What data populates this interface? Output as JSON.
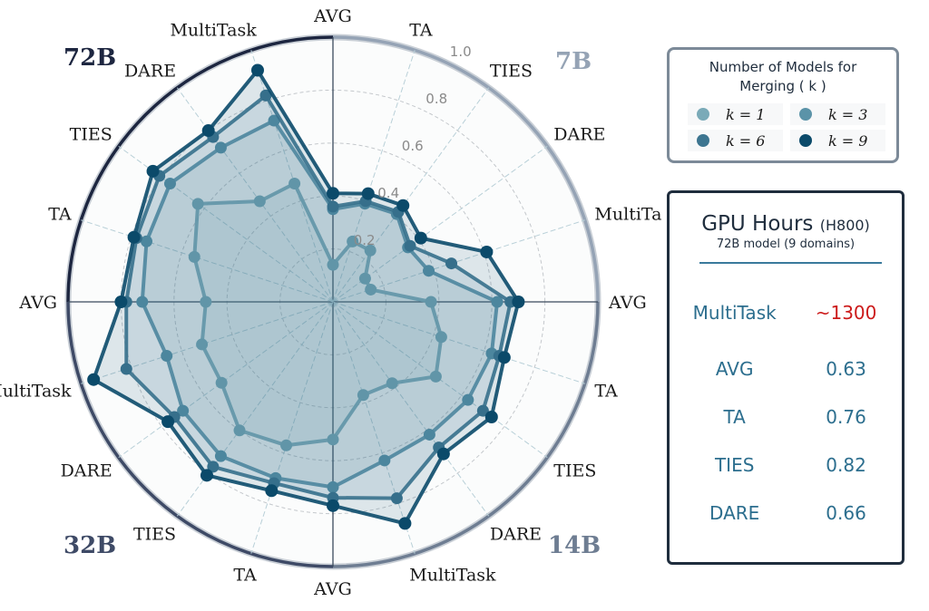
{
  "chart_data": {
    "type": "radar",
    "axes": [
      "AVG",
      "TA",
      "TIES",
      "DARE",
      "MultiTask",
      "AVG",
      "TA",
      "TIES",
      "DARE",
      "MultiTask",
      "AVG",
      "TA",
      "TIES",
      "DARE",
      "MultiTask",
      "AVG",
      "TA",
      "TIES",
      "DARE",
      "MultiTask"
    ],
    "models": [
      "7B",
      "14B",
      "32B",
      "72B"
    ],
    "rlim": [
      0,
      1.0
    ],
    "rticks": [
      "0.2",
      "0.4",
      "0.6",
      "0.8",
      "1.0"
    ],
    "grid": true,
    "legend_title": "Number of Models for Merging ( k )",
    "legend_placement": "right",
    "series": [
      {
        "name": "k = 1",
        "color": "#7aaab8",
        "values": [
          0.14,
          0.24,
          0.24,
          0.15,
          0.15,
          0.37,
          0.43,
          0.48,
          0.38,
          0.37,
          0.52,
          0.57,
          0.6,
          0.52,
          0.52,
          0.48,
          0.55,
          0.63,
          0.47,
          0.47
        ]
      },
      {
        "name": "k = 3",
        "color": "#5b93a8",
        "values": [
          0.35,
          0.39,
          0.41,
          0.35,
          0.38,
          0.62,
          0.63,
          0.63,
          0.62,
          0.63,
          0.7,
          0.7,
          0.72,
          0.7,
          0.66,
          0.72,
          0.74,
          0.76,
          0.72,
          0.72
        ]
      },
      {
        "name": "k = 6",
        "color": "#3d7590",
        "values": [
          0.36,
          0.4,
          0.42,
          0.36,
          0.47,
          0.67,
          0.66,
          0.7,
          0.68,
          0.78,
          0.74,
          0.72,
          0.77,
          0.74,
          0.82,
          0.78,
          0.78,
          0.81,
          0.77,
          0.82
        ]
      },
      {
        "name": "k = 9",
        "color": "#0b4a6a",
        "values": [
          0.41,
          0.43,
          0.45,
          0.41,
          0.61,
          0.7,
          0.68,
          0.74,
          0.71,
          0.88,
          0.77,
          0.75,
          0.81,
          0.77,
          0.95,
          0.8,
          0.79,
          0.84,
          0.8,
          0.92
        ]
      }
    ],
    "model_colors": {
      "7B": "#95a3b5",
      "14B": "#6e7d92",
      "32B": "#3e4a66",
      "72B": "#1d2640"
    }
  },
  "legend": {
    "title_line1": "Number of Models for",
    "title_line2": "Merging ( k )",
    "items": [
      "k = 1",
      "k = 3",
      "k = 6",
      "k = 9"
    ]
  },
  "gpu_table": {
    "title": "GPU Hours",
    "title_suffix": "(H800)",
    "subtitle": "72B model (9 domains)",
    "highlight_color": "#cc1a1a",
    "rows": [
      {
        "method": "MultiTask",
        "value": "~1300"
      },
      {
        "method": "AVG",
        "value": "0.63"
      },
      {
        "method": "TA",
        "value": "0.76"
      },
      {
        "method": "TIES",
        "value": "0.82"
      },
      {
        "method": "DARE",
        "value": "0.66"
      }
    ]
  }
}
